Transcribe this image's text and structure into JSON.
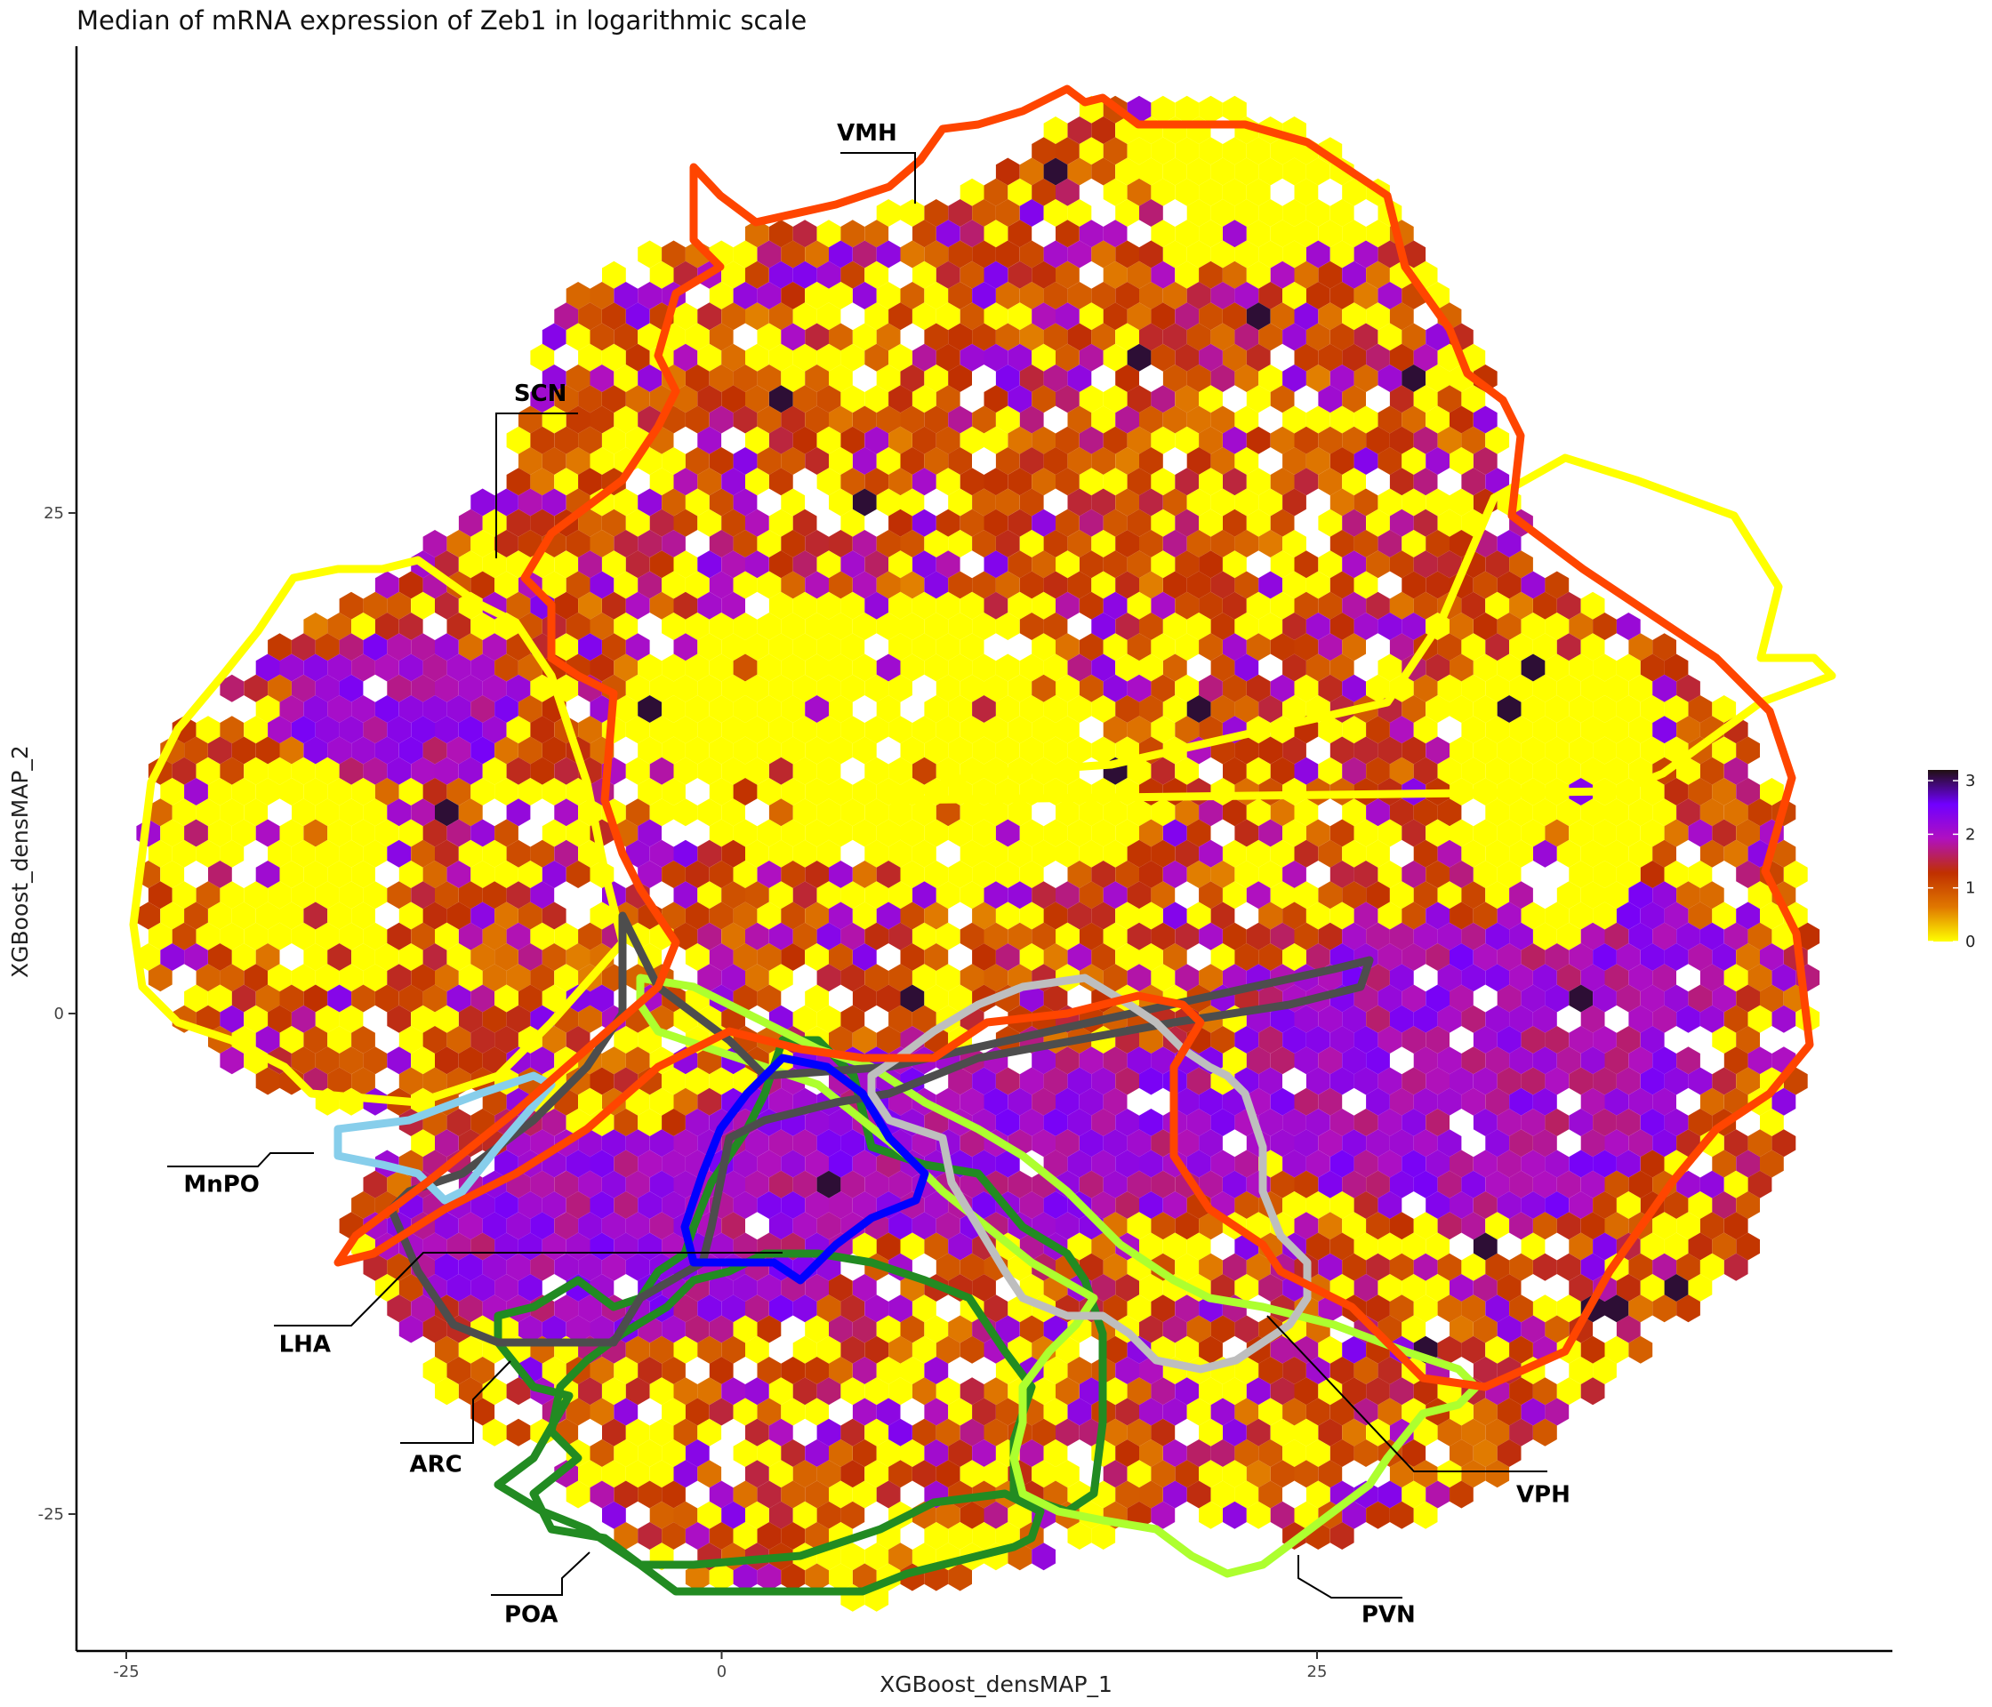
{
  "chart_data": {
    "type": "heatmap",
    "title": "Median of mRNA expression of Zeb1 in logarithmic scale",
    "xlabel": "XGBoost_densMAP_1",
    "ylabel": "XGBoost_densMAP_2",
    "xlim": [
      -27,
      50
    ],
    "ylim": [
      -32,
      48
    ],
    "x_ticks": [
      -25,
      0,
      25
    ],
    "y_ticks": [
      -25,
      0,
      25
    ],
    "x_tick_labels": [
      "-25",
      "0",
      "25"
    ],
    "y_tick_labels": [
      "-25",
      "0",
      "25"
    ],
    "grid": false,
    "legend": {
      "position": "right",
      "min": 0,
      "max": 3.2,
      "ticks": [
        0,
        1,
        2,
        3
      ],
      "tick_labels": [
        "0",
        "1",
        "2",
        "3"
      ],
      "colors": [
        "#ffff00",
        "#e07800",
        "#c03000",
        "#b010c0",
        "#7000ff",
        "#201010"
      ]
    },
    "regions": [
      {
        "name": "VMH",
        "color": "#ff4500",
        "label_at": [
          7,
          44
        ]
      },
      {
        "name": "SCN",
        "color": "#ffff00",
        "label_at": [
          -7.5,
          31
        ]
      },
      {
        "name": "MnPO",
        "color": "#87ceeb",
        "label_at": [
          -21,
          -8.5
        ]
      },
      {
        "name": "LHA",
        "color": "#4d4d4d",
        "label_at": [
          -17.5,
          -16.5
        ]
      },
      {
        "name": "ARC",
        "color": "#0000ff",
        "label_at": [
          -12,
          -22.5
        ]
      },
      {
        "name": "POA",
        "color": "#228b22",
        "label_at": [
          -8,
          -30
        ]
      },
      {
        "name": "VPH",
        "color": "#bebebe",
        "label_at": [
          34.5,
          -24
        ]
      },
      {
        "name": "PVN",
        "color": "#adff2f",
        "label_at": [
          28,
          -30
        ]
      }
    ]
  }
}
